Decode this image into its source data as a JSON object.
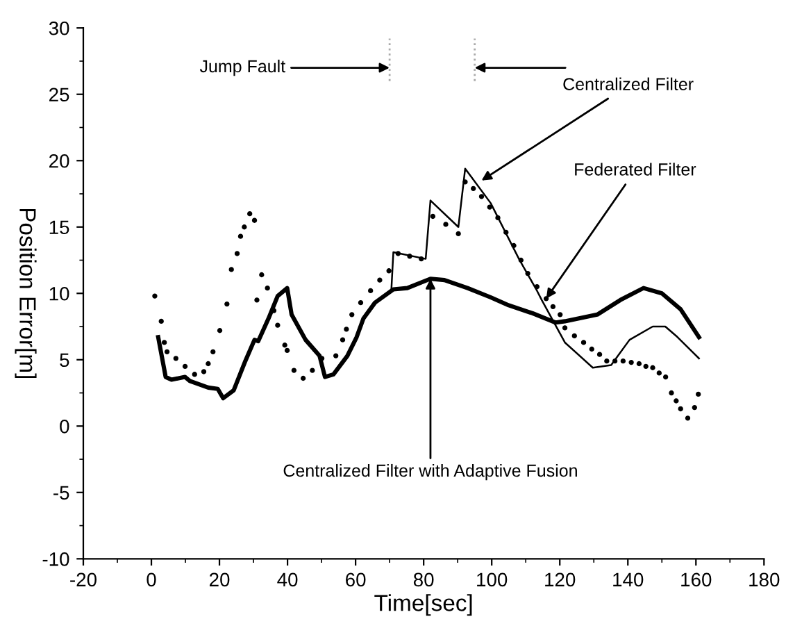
{
  "chart_data": {
    "type": "line",
    "xlabel": "Time[sec]",
    "ylabel": "Position Error[m]",
    "xlim": [
      -20,
      180
    ],
    "xticks": [
      -20,
      0,
      20,
      40,
      60,
      80,
      100,
      120,
      140,
      160,
      180
    ],
    "ylim": [
      -10,
      30
    ],
    "yticks": [
      -10,
      -5,
      0,
      5,
      10,
      15,
      20,
      25,
      30
    ],
    "grid": false,
    "series": [
      {
        "color": "#000000",
        "line_style": "solid",
        "x": [
          2.0,
          4.2,
          5.9,
          9.9,
          11.3,
          16.7,
          19.5,
          21.1,
          24.2,
          27.6,
          30.3,
          31.4,
          34.4,
          37.1,
          39.9,
          41.2,
          45.3,
          49.4,
          51,
          53.5,
          57.6,
          60.3,
          62.3,
          65.7,
          71.1,
          75.2,
          82,
          86.1,
          92.9,
          99.7,
          105,
          112,
          118.8,
          121.5,
          131,
          137.8,
          144.6,
          150,
          155.5,
          160.9
        ],
        "values": [
          6.7,
          3.7,
          3.5,
          3.7,
          3.4,
          2.9,
          2.8,
          2.1,
          2.7,
          4.9,
          6.5,
          6.4,
          8.1,
          9.8,
          10.4,
          8.4,
          6.5,
          5.3,
          3.7,
          3.9,
          5.3,
          6.7,
          8.1,
          9.3,
          10.3,
          10.4,
          11.1,
          11.0,
          10.4,
          9.7,
          9.1,
          8.5,
          7.8,
          7.9,
          8.4,
          9.5,
          10.4,
          10.0,
          8.8,
          6.7
        ]
      },
      {
        "color": "#000000",
        "line_style": "solid",
        "x": [
          70.5,
          71.1,
          80.6,
          82,
          90.2,
          92.2,
          99.7,
          108,
          113.3,
          114.7,
          121.5,
          129.7,
          135.1,
          140.5,
          147.3,
          151,
          154.6,
          160.9
        ],
        "values": [
          10.2,
          13.1,
          12.6,
          17.0,
          15.0,
          19.4,
          16.8,
          12.6,
          10.2,
          9.5,
          6.3,
          4.4,
          4.6,
          6.5,
          7.5,
          7.5,
          6.7,
          5.1
        ]
      },
      {
        "type": "scatter",
        "color": "#000000",
        "marker": "circle",
        "x": [
          1.0,
          2.9,
          3.8,
          4.6,
          7.2,
          9.9,
          12.7,
          15.4,
          16.7,
          18.1,
          20.1,
          22.2,
          23.5,
          25.2,
          26.2,
          27.3,
          28.9,
          30.3,
          31,
          32.4,
          34.1,
          36,
          37.1,
          39.2,
          39.9,
          41.9,
          44.6,
          47.3,
          50.1,
          54.2,
          56.2,
          57.3,
          58.9,
          61.5,
          64.4,
          67.1,
          69.8,
          72.5,
          75.9,
          79.3,
          82.7,
          86.5,
          90.2,
          92.2,
          94.6,
          97,
          99.4,
          101.8,
          104.2,
          106.5,
          108.6,
          110.6,
          113.3,
          116,
          118,
          120.1,
          121.5,
          124.3,
          127,
          129.4,
          131.7,
          133.8,
          136.2,
          138.6,
          141,
          143.3,
          145.3,
          147.3,
          149.2,
          151.1,
          152.8,
          154.2,
          155.5,
          157.6,
          159.6,
          160.7
        ],
        "values": [
          9.8,
          7.9,
          6.3,
          5.6,
          5.1,
          4.5,
          3.9,
          4.1,
          4.7,
          5.6,
          7.2,
          9.2,
          11.8,
          13.0,
          14.3,
          15.0,
          16.0,
          15.5,
          9.5,
          11.4,
          10.4,
          8.7,
          7.6,
          6.1,
          5.7,
          4.2,
          3.6,
          4.2,
          5.1,
          5.3,
          6.5,
          7.3,
          8.4,
          9.3,
          10.2,
          11.0,
          11.7,
          13.0,
          12.8,
          12.6,
          15.8,
          15.2,
          14.5,
          18.4,
          17.9,
          17.3,
          16.5,
          15.7,
          14.6,
          13.6,
          12.5,
          11.5,
          10.5,
          9.6,
          9.0,
          8.4,
          7.4,
          6.8,
          6.3,
          5.8,
          5.4,
          4.9,
          4.9,
          4.9,
          4.8,
          4.7,
          4.5,
          4.4,
          4.0,
          3.7,
          2.5,
          1.9,
          1.3,
          0.6,
          1.4,
          2.4
        ]
      }
    ],
    "ref_lines": [
      {
        "axis": "x",
        "value": 70,
        "color": "#aaaaaa",
        "line_style": "dotted"
      },
      {
        "axis": "x",
        "value": 95,
        "color": "#aaaaaa",
        "line_style": "dotted"
      }
    ],
    "annotations": [
      {
        "text": "Jump Fault",
        "x": 70,
        "y": 27
      },
      {
        "text": "Centralized Filter",
        "x": 97,
        "y": 18.5
      },
      {
        "text": "Federated Filter",
        "x": 116,
        "y": 9.6
      },
      {
        "text": "Centralized Filter with Adaptive Fusion",
        "x": 82,
        "y": 11.1
      }
    ]
  }
}
